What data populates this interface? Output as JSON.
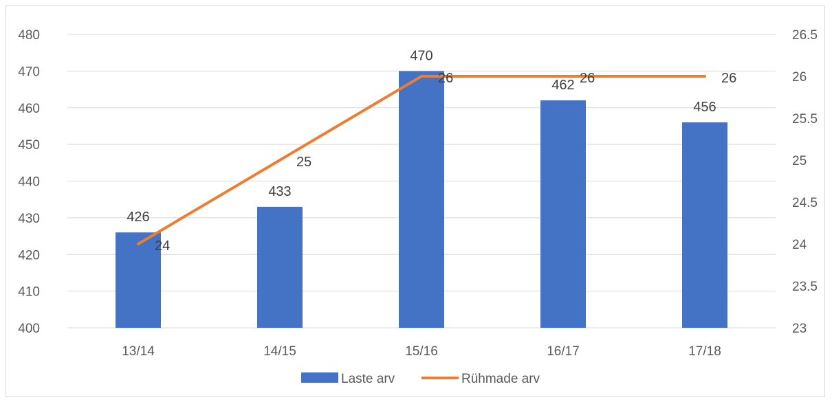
{
  "chart_data": {
    "type": "bar",
    "categories": [
      "13/14",
      "14/15",
      "15/16",
      "16/17",
      "17/18"
    ],
    "series": [
      {
        "name": "Laste arv",
        "kind": "bar",
        "axis": "left",
        "values": [
          426,
          433,
          470,
          462,
          456
        ],
        "color": "#4472C4"
      },
      {
        "name": "Rühmade arv",
        "kind": "line",
        "axis": "right",
        "values": [
          24,
          25,
          26,
          26,
          26
        ],
        "color": "#ED7D31"
      }
    ],
    "y_left": {
      "range": [
        400,
        480
      ],
      "ticks": [
        "400",
        "410",
        "420",
        "430",
        "440",
        "450",
        "460",
        "470",
        "480"
      ]
    },
    "y_right": {
      "range": [
        23,
        26.5
      ],
      "ticks": [
        "23",
        "23.5",
        "24",
        "24.5",
        "25",
        "25.5",
        "26",
        "26.5"
      ]
    },
    "grid": true,
    "legend_position": "bottom",
    "colors": {
      "gridline": "#d9d9d9",
      "axis_text": "#595959"
    }
  }
}
